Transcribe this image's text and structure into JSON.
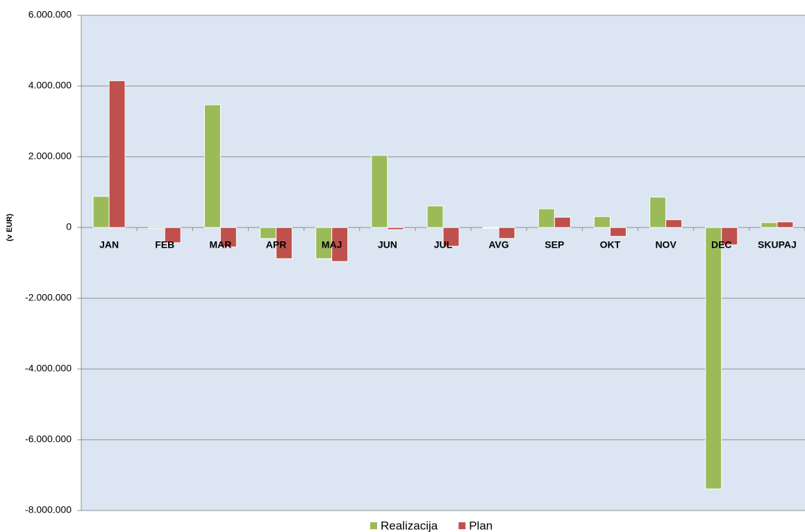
{
  "chart_data": {
    "type": "bar",
    "y_axis_label": "(v EUR)",
    "categories": [
      "JAN",
      "FEB",
      "MAR",
      "APR",
      "MAJ",
      "JUN",
      "JUL",
      "AVG",
      "SEP",
      "OKT",
      "NOV",
      "DEC",
      "SKUPAJ"
    ],
    "series": [
      {
        "name": "Realizacija",
        "color": "#9bbb59",
        "values": [
          880000,
          -30000,
          3470000,
          -310000,
          -880000,
          2040000,
          610000,
          -20000,
          530000,
          310000,
          860000,
          -7390000,
          140000
        ]
      },
      {
        "name": "Plan",
        "color": "#c0504d",
        "values": [
          4150000,
          -430000,
          -550000,
          -880000,
          -960000,
          -60000,
          -530000,
          -310000,
          290000,
          -250000,
          220000,
          -490000,
          160000
        ]
      }
    ],
    "ylim": [
      -8000000,
      6000000
    ],
    "yticks": [
      {
        "value": -8000000,
        "label": "-8.000.000"
      },
      {
        "value": -6000000,
        "label": "-6.000.000"
      },
      {
        "value": -4000000,
        "label": "-4.000.000"
      },
      {
        "value": -2000000,
        "label": "-2.000.000"
      },
      0,
      {
        "value": 2000000,
        "label": "2.000.000"
      },
      {
        "value": 4000000,
        "label": "4.000.000"
      },
      {
        "value": 6000000,
        "label": "6.000.000"
      }
    ],
    "grid": true,
    "legend": "bottom"
  }
}
